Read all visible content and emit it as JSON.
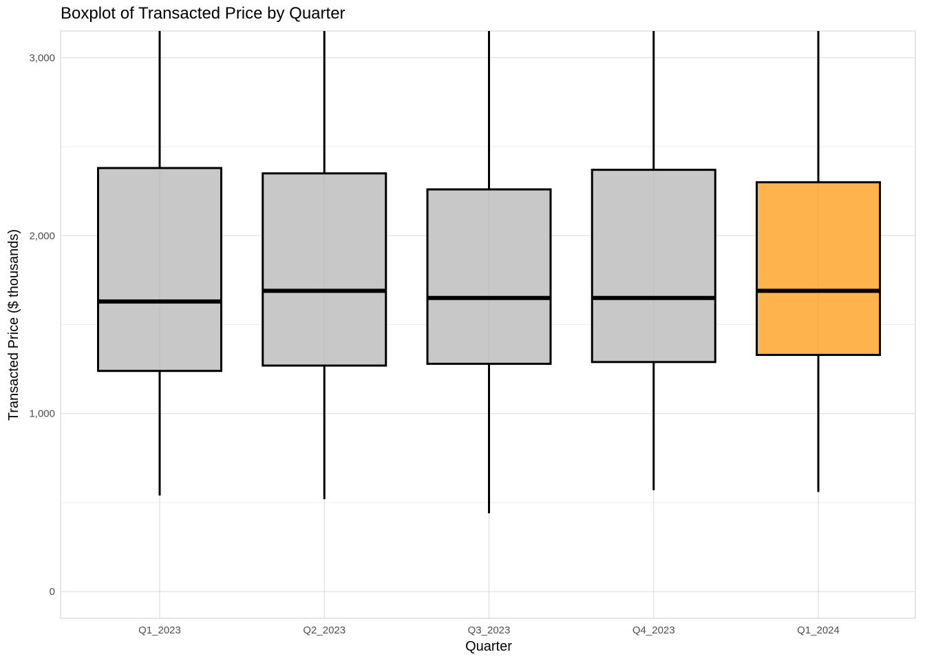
{
  "chart_data": {
    "type": "boxplot",
    "title": "Boxplot of Transacted Price by Quarter",
    "xlabel": "Quarter",
    "ylabel": "Transacted Price ($ thousands)",
    "ylim": [
      -150,
      3150
    ],
    "y_ticks": [
      0,
      1000,
      2000,
      3000
    ],
    "y_tick_labels": [
      "0",
      "1,000",
      "2,000",
      "3,000"
    ],
    "grid": true,
    "categories": [
      "Q1_2023",
      "Q2_2023",
      "Q3_2023",
      "Q4_2023",
      "Q1_2024"
    ],
    "boxes": [
      {
        "category": "Q1_2023",
        "whisker_low": 540,
        "q1": 1240,
        "median": 1630,
        "q3": 2380,
        "whisker_high": 3150
      },
      {
        "category": "Q2_2023",
        "whisker_low": 520,
        "q1": 1270,
        "median": 1690,
        "q3": 2350,
        "whisker_high": 3150
      },
      {
        "category": "Q3_2023",
        "whisker_low": 440,
        "q1": 1280,
        "median": 1650,
        "q3": 2260,
        "whisker_high": 3150
      },
      {
        "category": "Q4_2023",
        "whisker_low": 570,
        "q1": 1290,
        "median": 1650,
        "q3": 2370,
        "whisker_high": 3150
      },
      {
        "category": "Q1_2024",
        "whisker_low": 560,
        "q1": 1330,
        "median": 1690,
        "q3": 2300,
        "whisker_high": 3150
      }
    ],
    "colors": {
      "default_fill": "#c8c8c8",
      "highlight_fill": "#ffb34d",
      "highlight_category": "Q1_2024",
      "stroke": "#000000",
      "grid": "#d9d9d9",
      "grid_minor": "#ececec"
    }
  }
}
